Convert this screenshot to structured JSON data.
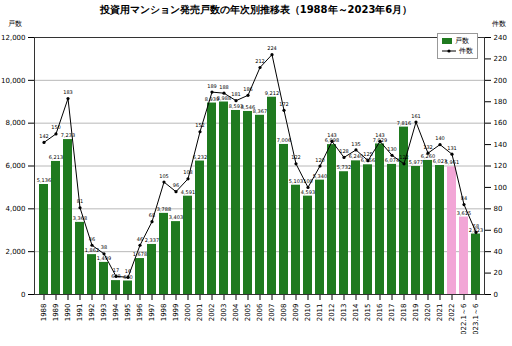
{
  "chart_data": {
    "type": "bar",
    "title": "投資用マンション発売戸数の年次別推移表（1988年～2023年6月）",
    "categories": [
      "1988",
      "1989",
      "1990",
      "1991",
      "1992",
      "1993",
      "1994",
      "1995",
      "1996",
      "1997",
      "1998",
      "1999",
      "2000",
      "2001",
      "2002",
      "2003",
      "2004",
      "2005",
      "2006",
      "2007",
      "2008",
      "2009",
      "2010",
      "2011",
      "2012",
      "2013",
      "2014",
      "2015",
      "2016",
      "2017",
      "2018",
      "2019",
      "2020",
      "2021",
      "2022",
      "2022.1～6",
      "2023.1～6"
    ],
    "series": [
      {
        "name": "戸数",
        "type": "bar",
        "colors": [
          "#1f7a1f",
          "#1f7a1f",
          "#1f7a1f",
          "#1f7a1f",
          "#1f7a1f",
          "#1f7a1f",
          "#1f7a1f",
          "#1f7a1f",
          "#1f7a1f",
          "#1f7a1f",
          "#1f7a1f",
          "#1f7a1f",
          "#1f7a1f",
          "#1f7a1f",
          "#1f7a1f",
          "#1f7a1f",
          "#1f7a1f",
          "#1f7a1f",
          "#1f7a1f",
          "#1f7a1f",
          "#1f7a1f",
          "#1f7a1f",
          "#1f7a1f",
          "#1f7a1f",
          "#1f7a1f",
          "#1f7a1f",
          "#1f7a1f",
          "#1f7a1f",
          "#1f7a1f",
          "#1f7a1f",
          "#1f7a1f",
          "#1f7a1f",
          "#1f7a1f",
          "#1f7a1f",
          "#f2a6d6",
          "#f2a6d6",
          "#1f7a1f"
        ],
        "values": [
          5136,
          6213,
          7233,
          3368,
          1862,
          1499,
          648,
          630,
          1678,
          2337,
          3788,
          3403,
          4591,
          6232,
          8939,
          8988,
          8593,
          8546,
          8367,
          9212,
          7006,
          5103,
          4593,
          5340,
          6998,
          5732,
          6240,
          6056,
          7029,
          6074,
          7816,
          5977,
          6260,
          6023,
          5961,
          3615,
          2823
        ],
        "value_labels": [
          "5,136",
          "6,213",
          "7,233",
          "3,368",
          "1,862",
          "1,499",
          "648",
          "630",
          "1,678",
          "2,337",
          "3,788",
          "3,403",
          "4,591",
          "6,232",
          "8,939",
          "8,988",
          "8,593",
          "8,546",
          "8,367",
          "9,212",
          "7,006",
          "5,103",
          "4,593",
          "5,340",
          "6,998",
          "5,732",
          "6,240",
          "6,056",
          "7,029",
          "6,074",
          "7,816",
          "5,977",
          "6,260",
          "6,023",
          "5,961",
          "3,615",
          "2,823"
        ]
      },
      {
        "name": "件数",
        "type": "line",
        "axis": "y2",
        "color": "#000000",
        "marker": "circle",
        "values": [
          142,
          150,
          183,
          81,
          46,
          38,
          17,
          16,
          46,
          68,
          105,
          96,
          108,
          152,
          189,
          188,
          181,
          186,
          212,
          224,
          172,
          122,
          100,
          120,
          143,
          128,
          135,
          125,
          143,
          130,
          122,
          161,
          132,
          140,
          131,
          84,
          58
        ]
      }
    ],
    "ylabel": "戸数",
    "y2label": "件数",
    "ylim": [
      0,
      12000
    ],
    "yticks": [
      {
        "value": 0,
        "label": "0"
      },
      {
        "value": 2000,
        "label": "2,000"
      },
      {
        "value": 4000,
        "label": "4,000"
      },
      {
        "value": 6000,
        "label": "6,000"
      },
      {
        "value": 8000,
        "label": "8,000"
      },
      {
        "value": 10000,
        "label": "10,000"
      },
      {
        "value": 12000,
        "label": "12,000"
      }
    ],
    "y2lim": [
      0,
      240
    ],
    "y2ticks": [
      0,
      20,
      40,
      60,
      80,
      100,
      120,
      140,
      160,
      180,
      200,
      220,
      240
    ],
    "grid": true,
    "legend": "top-right",
    "data_labels": true
  }
}
